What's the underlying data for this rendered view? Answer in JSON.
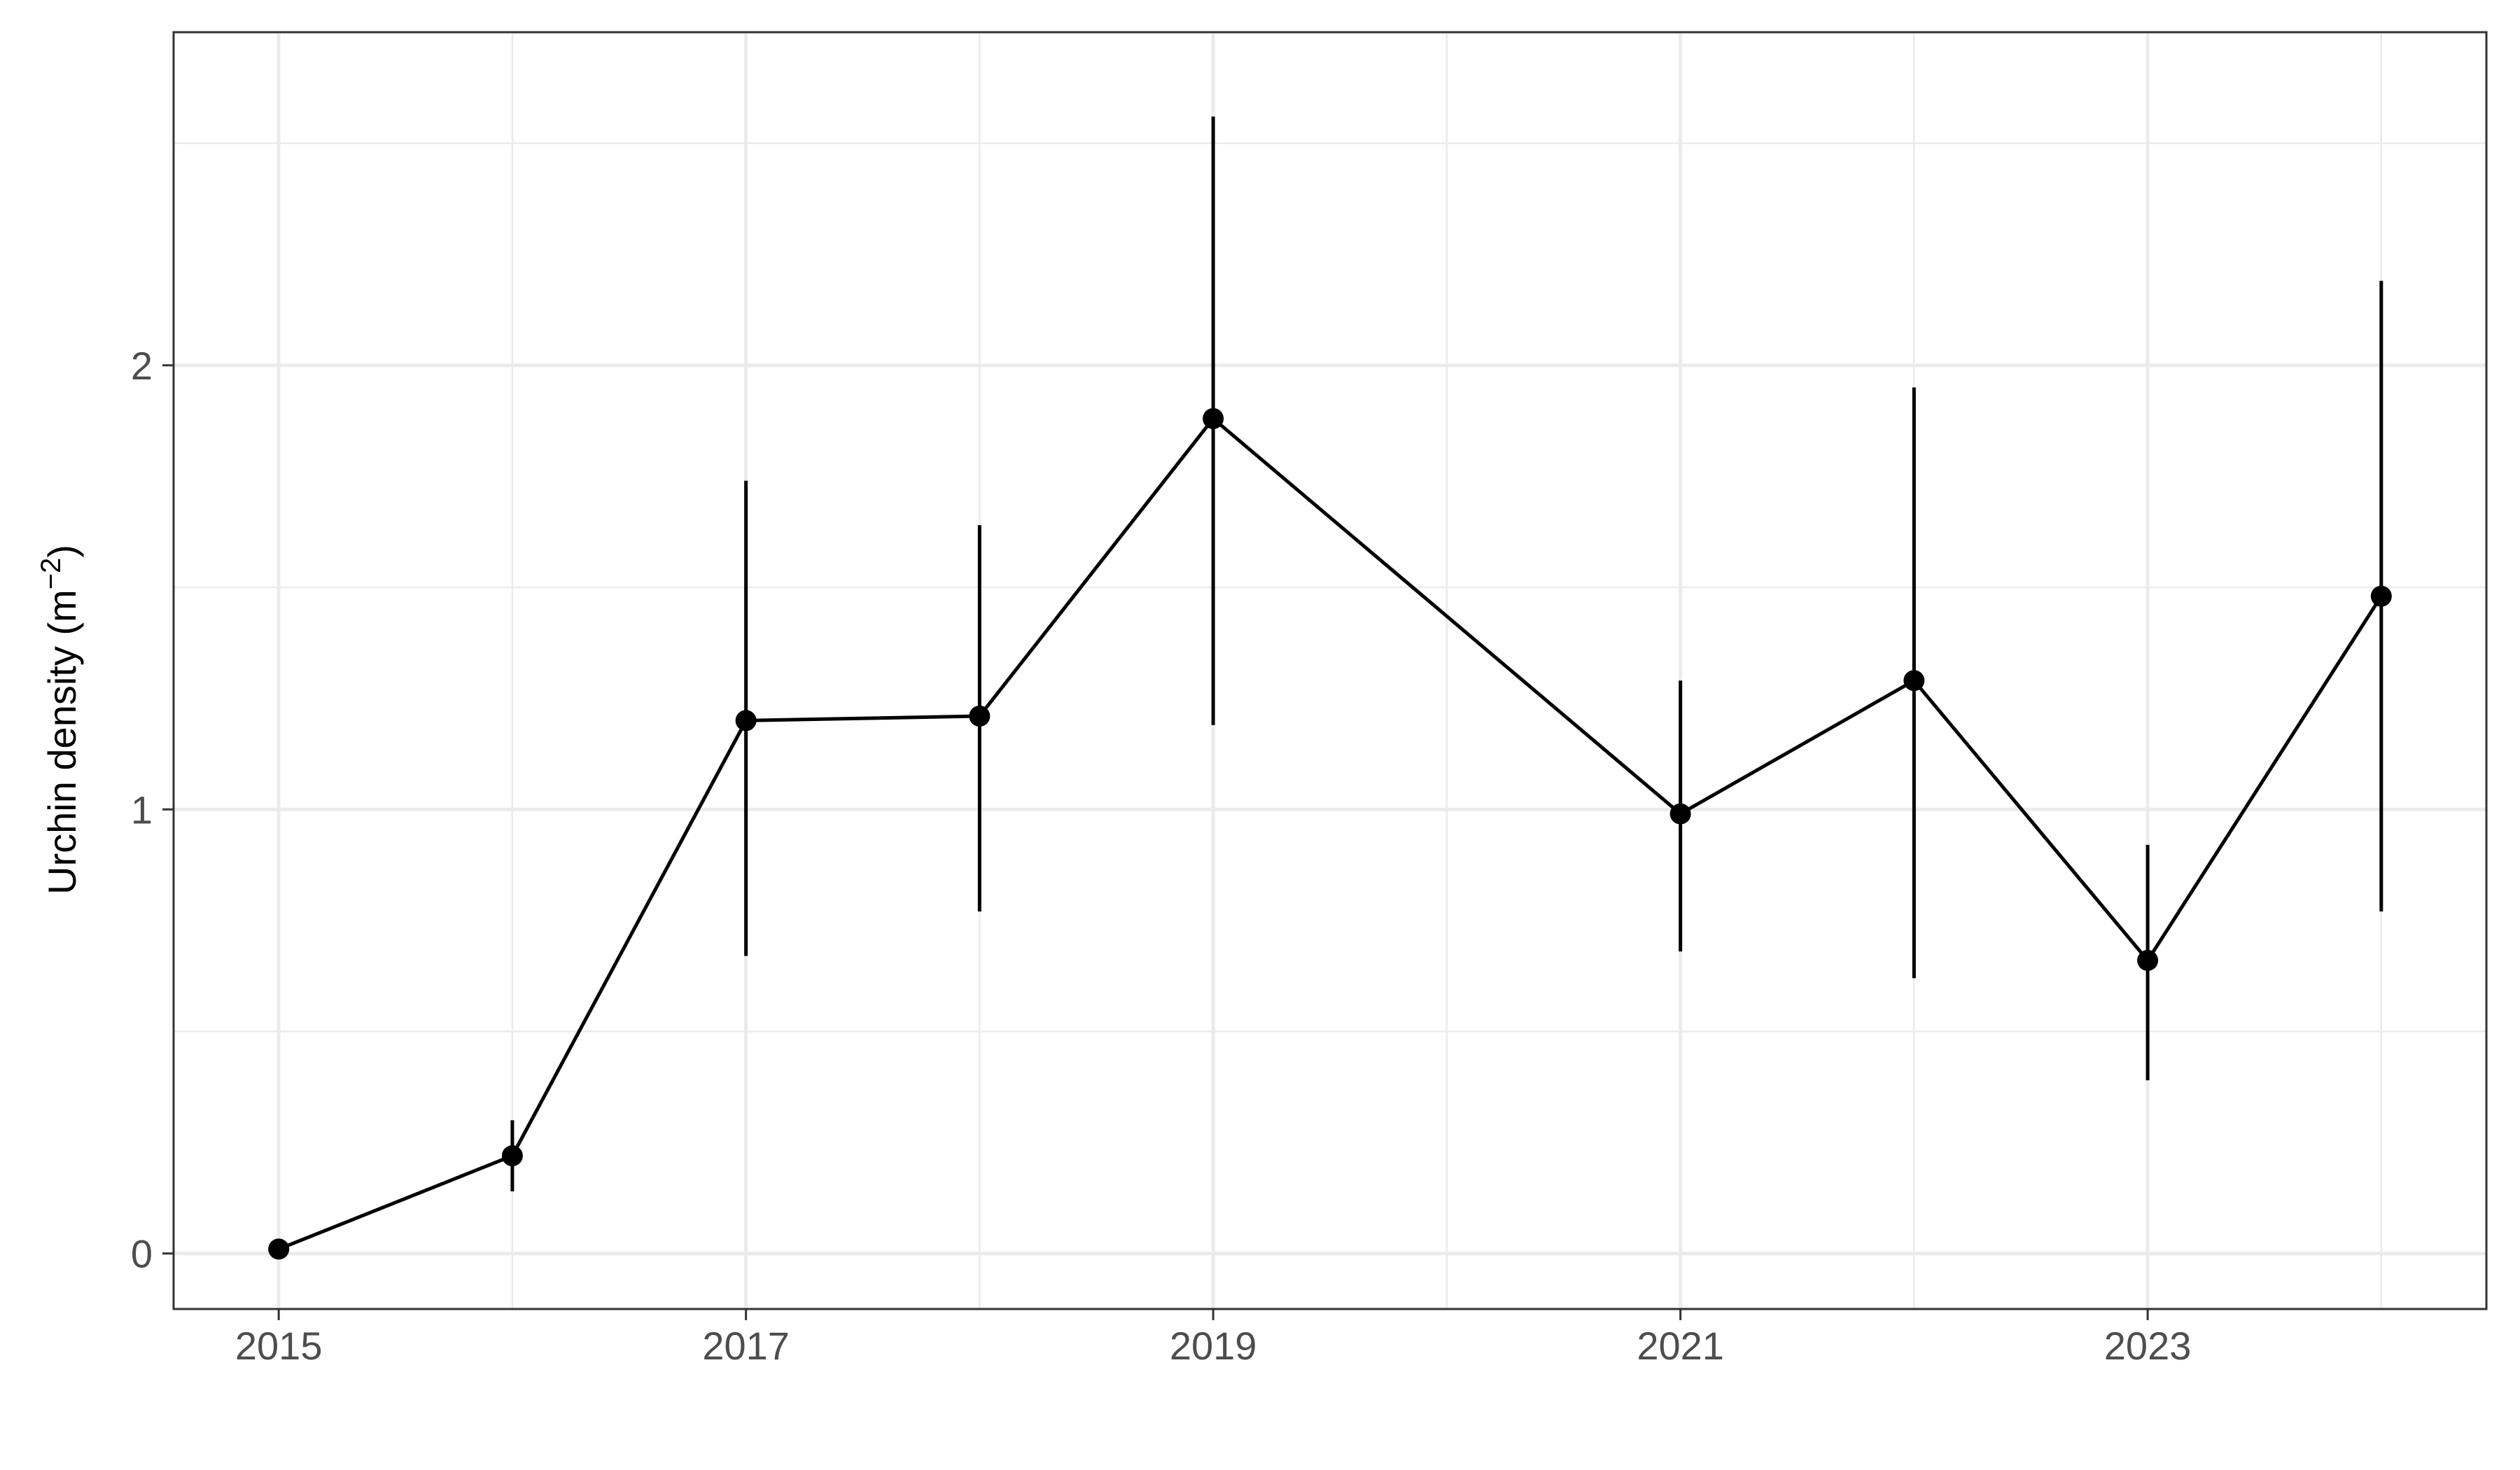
{
  "chart_data": {
    "type": "line",
    "title": "",
    "xlabel": "",
    "ylabel": {
      "text": "Urchin density (m",
      "superscript": "−2",
      "suffix": ")"
    },
    "x_ticks": [
      "2015",
      "2017",
      "2019",
      "2021",
      "2023"
    ],
    "y_ticks": [
      "0",
      "1",
      "2"
    ],
    "xlim": [
      2014.55,
      2024.45
    ],
    "ylim": [
      -0.125,
      2.75
    ],
    "grid": true,
    "legend": "none",
    "series": [
      {
        "points": [
          {
            "x": 2015,
            "y": 0.01,
            "lower": 0.01,
            "upper": 0.01
          },
          {
            "x": 2016,
            "y": 0.22,
            "lower": 0.14,
            "upper": 0.3
          },
          {
            "x": 2017,
            "y": 1.2,
            "lower": 0.67,
            "upper": 1.74
          },
          {
            "x": 2018,
            "y": 1.21,
            "lower": 0.77,
            "upper": 1.64
          },
          {
            "x": 2019,
            "y": 1.88,
            "lower": 1.19,
            "upper": 2.56
          },
          {
            "x": 2021,
            "y": 0.99,
            "lower": 0.68,
            "upper": 1.29
          },
          {
            "x": 2022,
            "y": 1.29,
            "lower": 0.62,
            "upper": 1.95
          },
          {
            "x": 2023,
            "y": 0.66,
            "lower": 0.39,
            "upper": 0.92
          },
          {
            "x": 2024,
            "y": 1.48,
            "lower": 0.77,
            "upper": 2.19
          }
        ]
      }
    ],
    "colors": {
      "line": "#000000",
      "grid": "#ebebeb",
      "panel_border": "#333333",
      "tick_text": "#4d4d4d"
    }
  }
}
